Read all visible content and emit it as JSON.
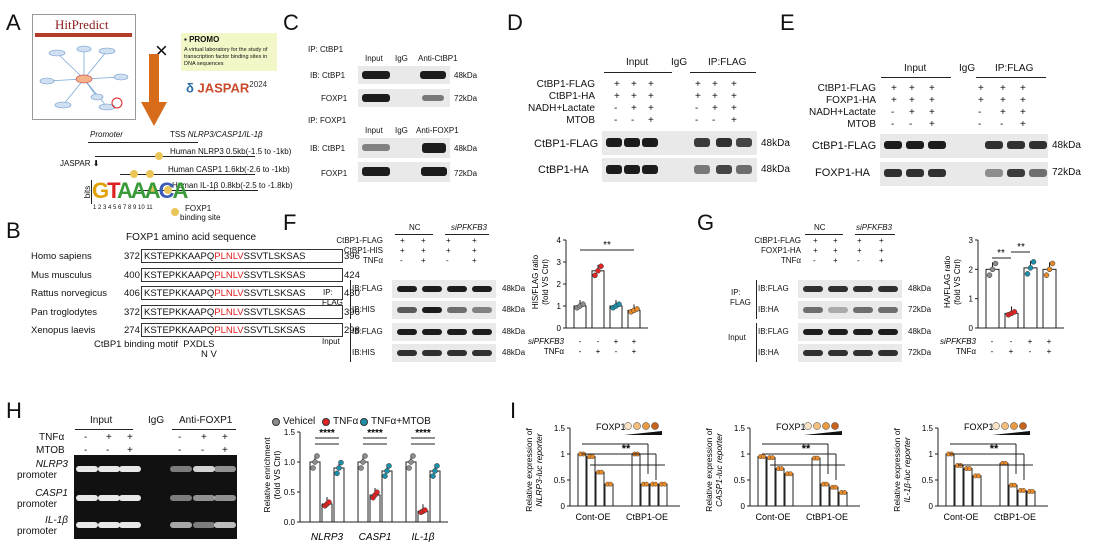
{
  "panels": {
    "A": "A",
    "B": "B",
    "C": "C",
    "D": "D",
    "E": "E",
    "F": "F",
    "G": "G",
    "H": "H",
    "I": "I"
  },
  "A": {
    "hitpredict": "HitPredict",
    "promo_title": "PROMO",
    "promo_text": "A virtual laboratory for the study of transcription factor binding sites in DNA sequences",
    "jaspar": "JASPAR",
    "jaspar_year": "2024",
    "times": "×",
    "jaspar_label": "JASPAR",
    "promoter": "Promoter",
    "tss": "TSS",
    "tss_genes": "NLRP3/CASP1/IL-1β",
    "rows": [
      "Human NLRP3 0.5kb(-1.5 to -1kb)",
      "Human CASP1 1.6kb(-2.6 to -1kb)",
      "Human IL-1β 0.8kb(-2.5 to -1.8kb)"
    ],
    "foxp1_site": "FOXP1",
    "binding_site": "binding site",
    "logo_text": "GTAAACA",
    "bits": "bits",
    "positions": "1 2 3 4 5 6 7 8 9 10 11"
  },
  "B": {
    "title": "FOXP1 amino acid sequence",
    "rows": [
      {
        "species": "Homo sapiens",
        "start": "372",
        "pre": "KSTEPKKAAPQ",
        "motif": "PLNLV",
        "post": "SSVTLSKSAS",
        "end": "396"
      },
      {
        "species": "Mus musculus",
        "start": "400",
        "pre": "KSTEPKKAAPQ",
        "motif": "PLNLV",
        "post": "SSVTLSKSAS",
        "end": "424"
      },
      {
        "species": "Rattus norvegicus",
        "start": "406",
        "pre": "KSTEPKKAAPQ",
        "motif": "PLNLV",
        "post": "SSVTLSKSAS",
        "end": "430"
      },
      {
        "species": "Pan troglodytes",
        "start": "372",
        "pre": "KSTEPKKAAPQ",
        "motif": "PLNLV",
        "post": "SSVTLSKSAS",
        "end": "396"
      },
      {
        "species": "Xenopus laevis",
        "start": "274",
        "pre": "KSTEPKKAAPQ",
        "motif": "PLNLV",
        "post": "SSVTLSKSAS",
        "end": "298"
      }
    ],
    "motif_label": "CtBP1 binding motif",
    "motif": "PXDLS",
    "motif_sub": "N  V"
  },
  "C": {
    "ip1": "IP:  CtBP1",
    "ip2": "IP: FOXP1",
    "input": "Input",
    "igg": "IgG",
    "anti1": "Anti-CtBP1",
    "anti2": "Anti-FOXP1",
    "ib_ctbp1": "IB:  CtBP1",
    "foxp1": "FOXP1",
    "kda48": "48kDa",
    "kda72": "72kDa"
  },
  "D": {
    "input": "Input",
    "igg": "IgG",
    "ip": "IP:FLAG",
    "rows": [
      "CtBP1-FLAG",
      "CtBP1-HA",
      "NADH+Lactate",
      "MTOB"
    ],
    "signs": [
      [
        "+",
        "+",
        "+",
        "+",
        "+",
        "+"
      ],
      [
        "+",
        "+",
        "+",
        "+",
        "+",
        "+"
      ],
      [
        "-",
        "+",
        "+",
        "-",
        "+",
        "+"
      ],
      [
        "-",
        "-",
        "+",
        "-",
        "-",
        "+"
      ]
    ],
    "blot1": "CtBP1-FLAG",
    "blot2": "CtBP1-HA",
    "kda48": "48kDa",
    "kda48b": "48kDa"
  },
  "E": {
    "input": "Input",
    "igg": "IgG",
    "ip": "IP:FLAG",
    "rows": [
      "CtBP1-FLAG",
      "FOXP1-HA",
      "NADH+Lactate",
      "MTOB"
    ],
    "signs": [
      [
        "+",
        "+",
        "+",
        "+",
        "+",
        "+"
      ],
      [
        "+",
        "+",
        "+",
        "+",
        "+",
        "+"
      ],
      [
        "-",
        "+",
        "+",
        "-",
        "+",
        "+"
      ],
      [
        "-",
        "-",
        "+",
        "-",
        "-",
        "+"
      ]
    ],
    "blot1": "CtBP1-FLAG",
    "blot2": "FOXP1-HA",
    "kda48": "48kDa",
    "kda72": "72kDa"
  },
  "F": {
    "nc": "NC",
    "si": "siPFKFB3",
    "rows": [
      "CtBP1-FLAG",
      "CtBP1-HIS",
      "TNFα"
    ],
    "signs": [
      [
        "+",
        "+",
        "+",
        "+"
      ],
      [
        "+",
        "+",
        "+",
        "+"
      ],
      [
        "-",
        "+",
        "-",
        "+"
      ]
    ],
    "ip": "IP:",
    "flag": "FLAG",
    "inputlbl": "Input",
    "ib": [
      "IB:FLAG",
      "IB:HIS",
      "IB:FLAG",
      "IB:HIS"
    ],
    "kda": [
      "48kDa",
      "48kDa",
      "48kDa",
      "48kDa"
    ],
    "ylabel": "HIS/FLAG ratio",
    "ylabel2": "(fold VS Ctrl)",
    "sig": "**",
    "xrow1": "siPFKFB3",
    "xrow2": "TNFα",
    "xsigns1": [
      "-",
      "-",
      "+",
      "+"
    ],
    "xsigns2": [
      "-",
      "+",
      "-",
      "+"
    ]
  },
  "G": {
    "nc": "NC",
    "si": "siPFKFB3",
    "rows": [
      "CtBP1-FLAG",
      "FOXP1-HA",
      "TNFα"
    ],
    "signs": [
      [
        "+",
        "+",
        "+",
        "+"
      ],
      [
        "+",
        "+",
        "+",
        "+"
      ],
      [
        "-",
        "+",
        "-",
        "+"
      ]
    ],
    "ip": "IP:",
    "flag": "FLAG",
    "inputlbl": "Input",
    "ib": [
      "IB:FLAG",
      "IB:HA",
      "IB:FLAG",
      "IB:HA"
    ],
    "kda": [
      "48kDa",
      "72kDa",
      "48kDa",
      "72kDa"
    ],
    "ylabel": "HA/FLAG ratio",
    "ylabel2": "(fold VS Ctrl)",
    "sig1": "**",
    "sig2": "**",
    "xrow1": "siPFKFB3",
    "xrow2": "TNFα",
    "xsigns1": [
      "-",
      "-",
      "+",
      "+"
    ],
    "xsigns2": [
      "-",
      "+",
      "-",
      "+"
    ]
  },
  "H": {
    "input": "Input",
    "igg": "IgG",
    "anti": "Anti-FOXP1",
    "tnf": "TNFα",
    "mtob": "MTOB",
    "tnf_signs": [
      "-",
      "+",
      "+",
      "-",
      "+",
      "+"
    ],
    "mtob_signs": [
      "-",
      "-",
      "+",
      "-",
      "-",
      "+"
    ],
    "genes": [
      "NLRP3",
      "CASP1",
      "IL-1β"
    ],
    "promoter": "promoter",
    "legend": [
      "Vehicel",
      "TNFα",
      "TNFα+MTOB"
    ],
    "ylabel": "Relative enrichment",
    "ylabel2": "(fold VS Ctrl)",
    "sig": "****"
  },
  "I": {
    "foxp1": "FOXP1",
    "charts": [
      {
        "ylabel": "Relative expression of",
        "ylabel2": "NLRP3-luc reporter"
      },
      {
        "ylabel": "Relative expression of",
        "ylabel2": "CASP1-luc reporter"
      },
      {
        "ylabel": "Relative expression of",
        "ylabel2": "IL-1β-luc reporter"
      }
    ],
    "x1": "Cont-OE",
    "x2": "CtBP1-OE",
    "sig": "**"
  },
  "colors": {
    "red": "#e32424",
    "teal": "#1e8fa8",
    "orange": "#e98a2a",
    "grey": "#8c8c8c",
    "wb": "#1c1c1c"
  },
  "chart_data": [
    {
      "type": "bar",
      "panel": "F",
      "categories": [
        "NC -TNFα",
        "NC +TNFα",
        "siPFKFB3 -TNFα",
        "siPFKFB3 +TNFα"
      ],
      "values": [
        1.0,
        2.6,
        1.0,
        0.8
      ],
      "ylim": [
        0,
        4
      ],
      "yticks": [
        0,
        1,
        2,
        3,
        4
      ],
      "colors": [
        "#8c8c8c",
        "#e32424",
        "#1e8fa8",
        "#e98a2a"
      ]
    },
    {
      "type": "bar",
      "panel": "G",
      "categories": [
        "NC -TNFα",
        "NC +TNFα",
        "siPFKFB3 -TNFα",
        "siPFKFB3 +TNFα"
      ],
      "values": [
        2.0,
        0.5,
        2.05,
        2.0
      ],
      "ylim": [
        0,
        3
      ],
      "yticks": [
        0,
        1,
        2,
        3
      ],
      "colors": [
        "#8c8c8c",
        "#e32424",
        "#1e8fa8",
        "#e98a2a"
      ]
    },
    {
      "type": "bar",
      "panel": "H",
      "categories": [
        "NLRP3",
        "CASP1",
        "IL-1β"
      ],
      "series": [
        {
          "name": "Vehicel",
          "values": [
            1.0,
            1.0,
            1.0
          ]
        },
        {
          "name": "TNFα",
          "values": [
            0.3,
            0.45,
            0.18
          ]
        },
        {
          "name": "TNFα+MTOB",
          "values": [
            0.9,
            0.85,
            0.85
          ]
        }
      ],
      "ylim": [
        0,
        1.5
      ],
      "yticks": [
        0.0,
        0.5,
        1.0,
        1.5
      ]
    },
    {
      "type": "bar",
      "panel": "I-NLRP3",
      "categories": [
        "Cont-OE",
        "CtBP1-OE"
      ],
      "series_values": [
        [
          1.0,
          0.95,
          0.65,
          0.42
        ],
        [
          1.0,
          0.42,
          0.42,
          0.42
        ]
      ],
      "ylim": [
        0,
        1.5
      ],
      "yticks": [
        0,
        0.5,
        1.0,
        1.5
      ]
    },
    {
      "type": "bar",
      "panel": "I-CASP1",
      "categories": [
        "Cont-OE",
        "CtBP1-OE"
      ],
      "series_values": [
        [
          0.95,
          0.93,
          0.72,
          0.62
        ],
        [
          0.92,
          0.42,
          0.36,
          0.26
        ]
      ],
      "ylim": [
        0,
        1.5
      ],
      "yticks": [
        0,
        0.5,
        1.0,
        1.5
      ]
    },
    {
      "type": "bar",
      "panel": "I-IL1B",
      "categories": [
        "Cont-OE",
        "CtBP1-OE"
      ],
      "series_values": [
        [
          1.0,
          0.78,
          0.72,
          0.58
        ],
        [
          0.82,
          0.4,
          0.3,
          0.28
        ]
      ],
      "ylim": [
        0,
        1.5
      ],
      "yticks": [
        0,
        0.5,
        1.0,
        1.5
      ]
    }
  ]
}
